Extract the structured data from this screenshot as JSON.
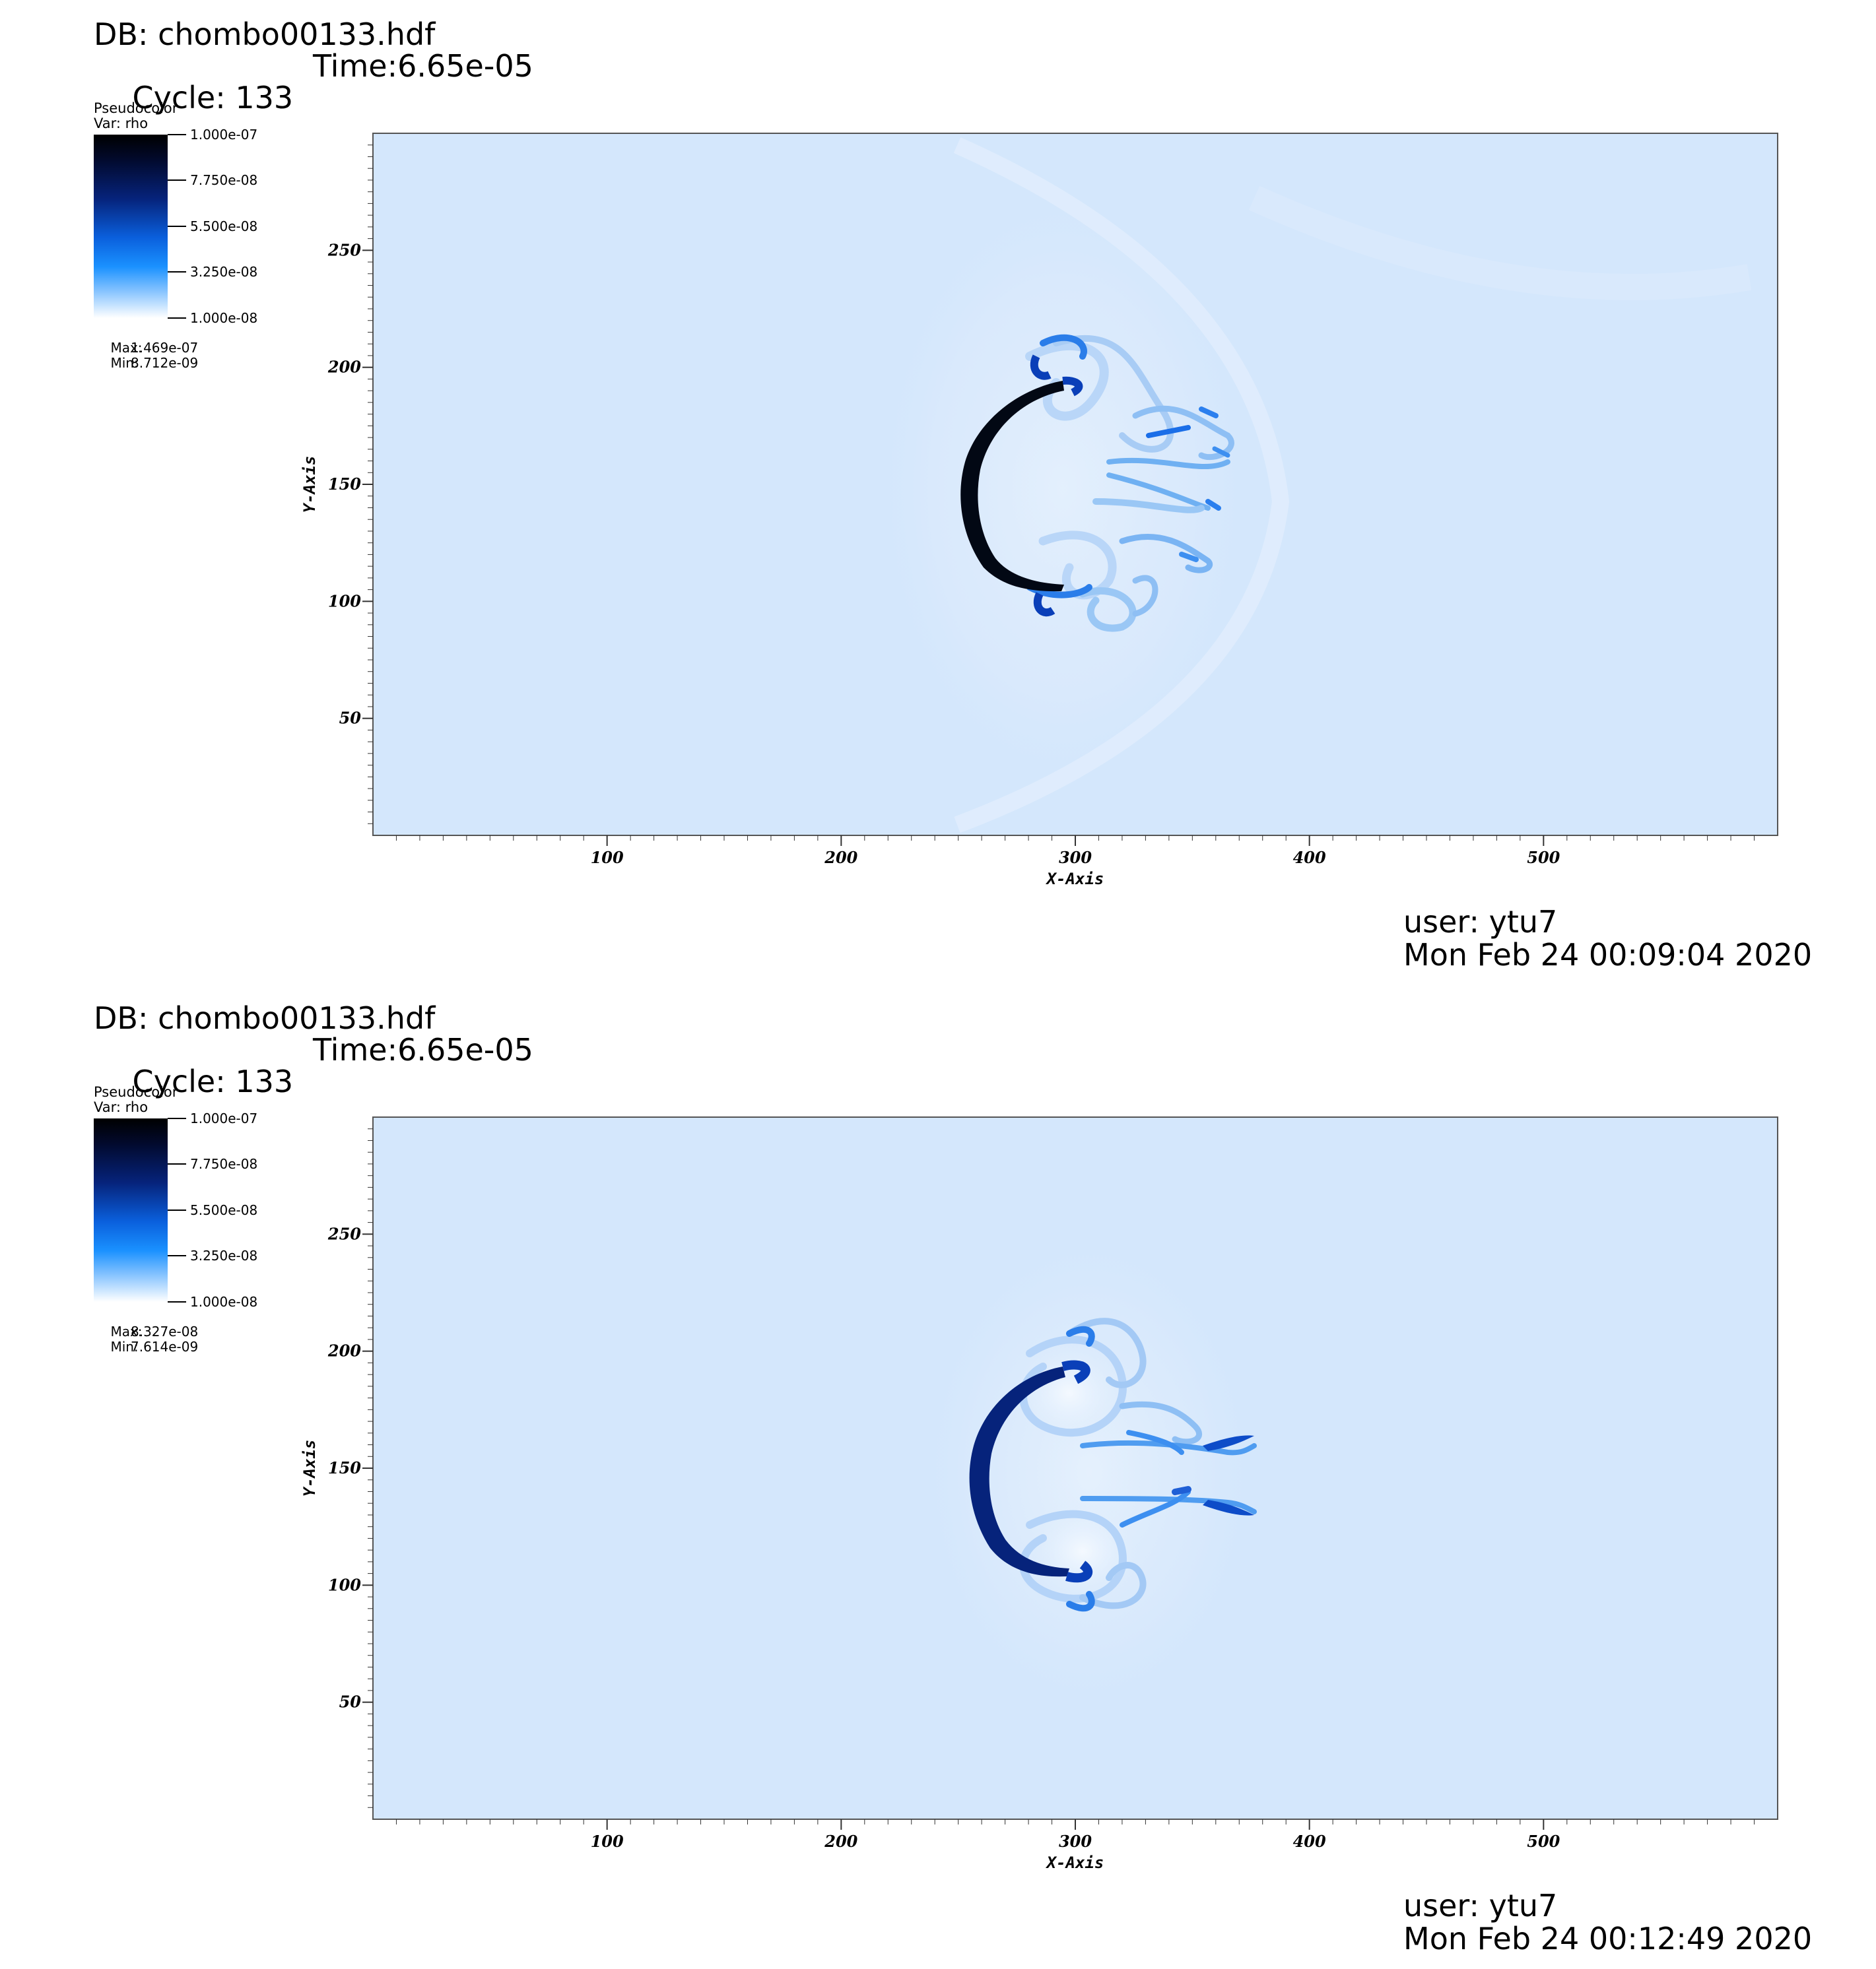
{
  "chart_data": [
    {
      "type": "heatmap",
      "db_label": "DB: chombo00133.hdf",
      "cycle_label": "Cycle: 133",
      "time_label": "Time:6.65e-05",
      "legend_title": "Pseudocolor",
      "legend_var": "Var: rho",
      "legend_ticks": [
        "1.000e-07",
        "7.750e-08",
        "5.500e-08",
        "3.250e-08",
        "1.000e-08"
      ],
      "legend_range": [
        1e-08,
        1e-07
      ],
      "max_label": "Max:",
      "max_value": "1.469e-07",
      "min_label": "Min:",
      "min_value": "8.712e-09",
      "xlabel": "X-Axis",
      "ylabel": "Y-Axis",
      "xlim": [
        0,
        600
      ],
      "ylim": [
        0,
        300
      ],
      "xticks": [
        100,
        200,
        300,
        400,
        500
      ],
      "yticks": [
        50,
        100,
        150,
        200,
        250
      ],
      "background_color": "#d4e7fc",
      "front_color": "#020814",
      "footer_user": "user: ytu7",
      "footer_date": "Mon Feb 24 00:09:04 2020"
    },
    {
      "type": "heatmap",
      "db_label": "DB: chombo00133.hdf",
      "cycle_label": "Cycle: 133",
      "time_label": "Time:6.65e-05",
      "legend_title": "Pseudocolor",
      "legend_var": "Var: rho",
      "legend_ticks": [
        "1.000e-07",
        "7.750e-08",
        "5.500e-08",
        "3.250e-08",
        "1.000e-08"
      ],
      "legend_range": [
        1e-08,
        1e-07
      ],
      "max_label": "Max:",
      "max_value": "8.327e-08",
      "min_label": "Min:",
      "min_value": "7.614e-09",
      "xlabel": "X-Axis",
      "ylabel": "Y-Axis",
      "xlim": [
        0,
        600
      ],
      "ylim": [
        0,
        300
      ],
      "xticks": [
        100,
        200,
        300,
        400,
        500
      ],
      "yticks": [
        50,
        100,
        150,
        200,
        250
      ],
      "background_color": "#d4e7fc",
      "front_color": "#06237b",
      "footer_user": "user: ytu7",
      "footer_date": "Mon Feb 24 00:12:49 2020"
    }
  ]
}
